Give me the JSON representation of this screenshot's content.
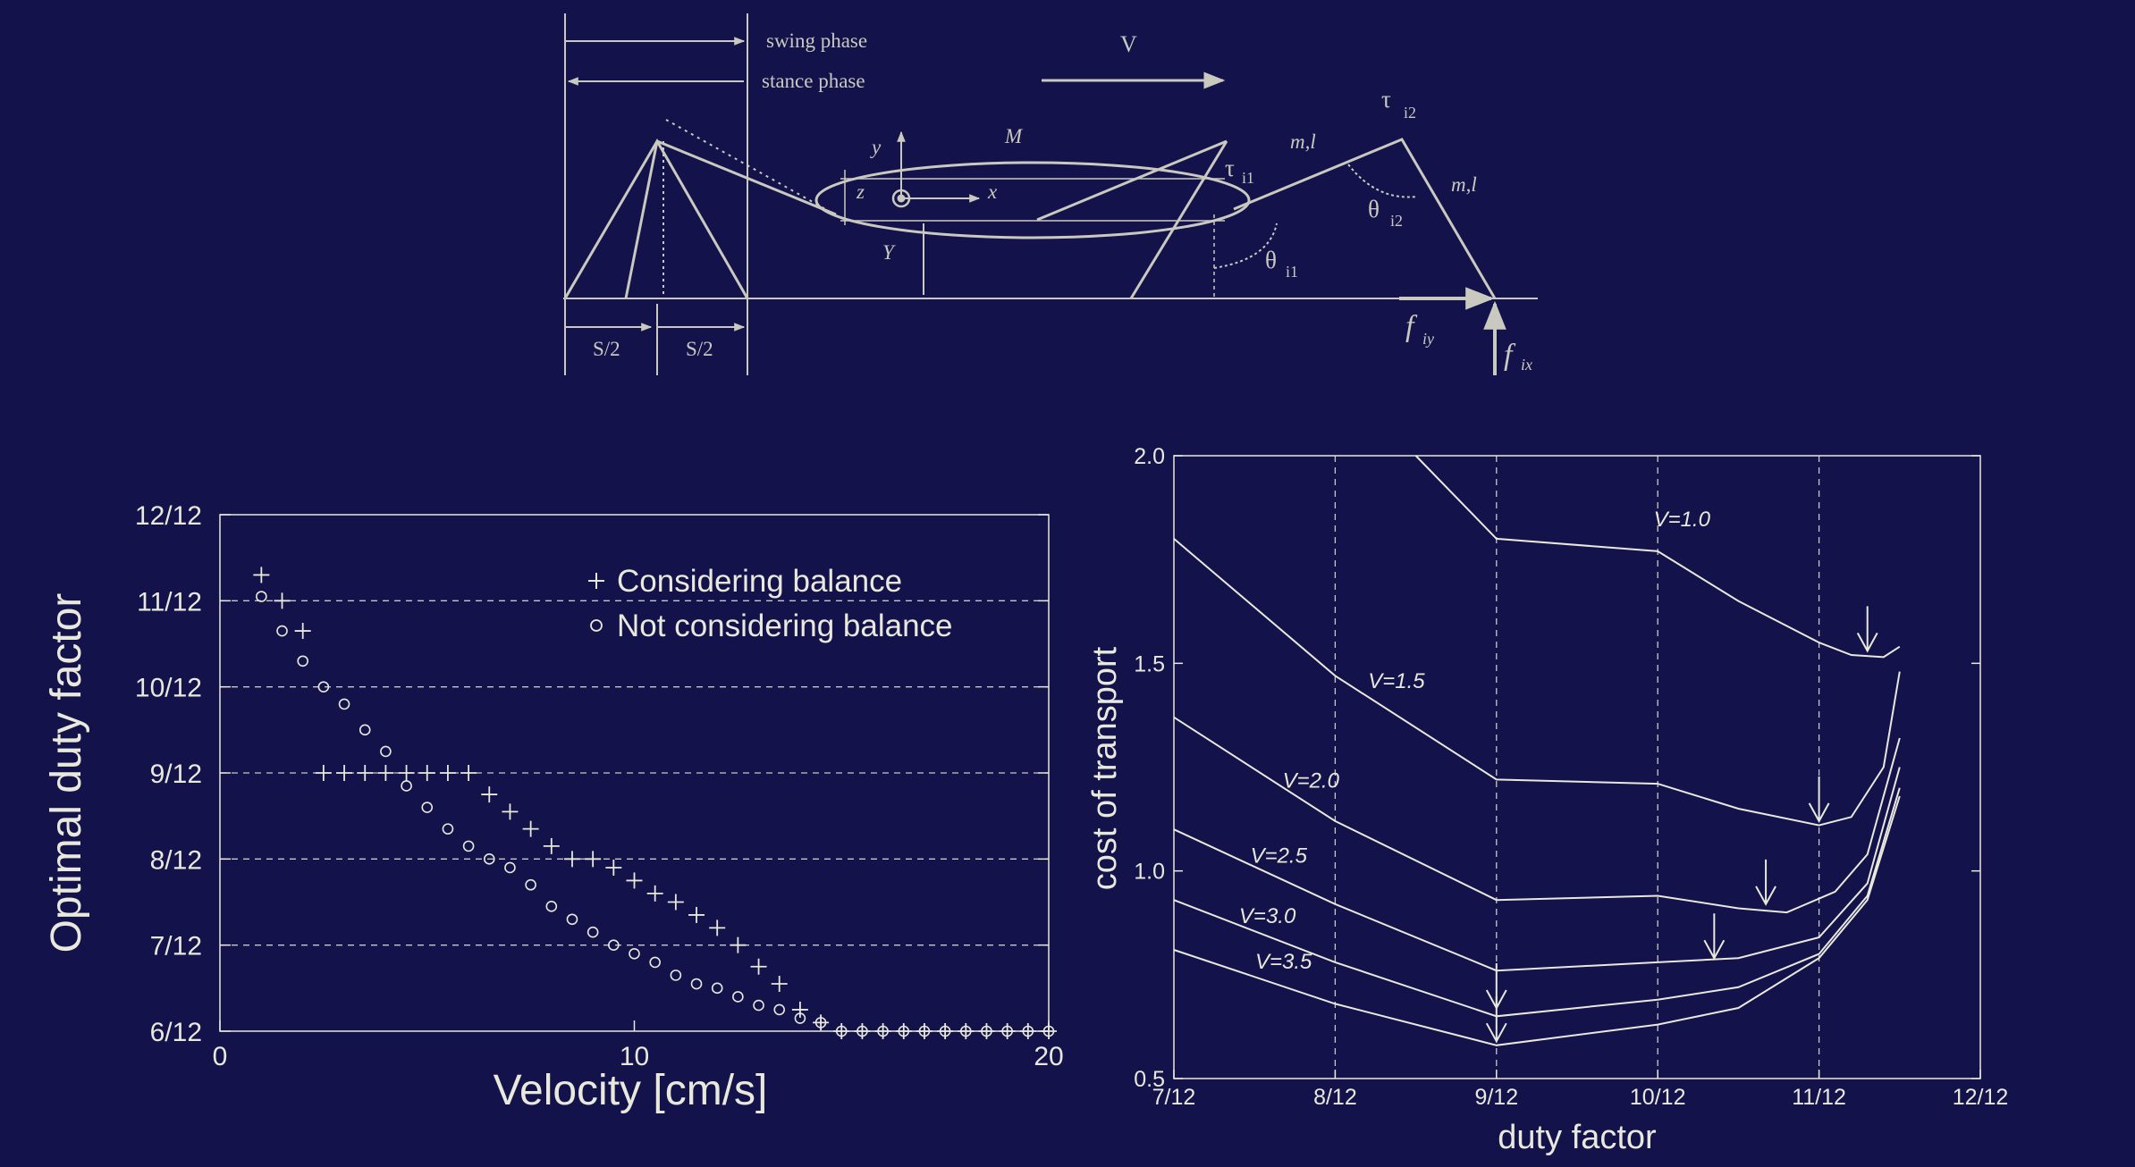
{
  "colors": {
    "background": "#13124a",
    "ink": "#e8e8dc",
    "diagram": "#c9c9c0"
  },
  "diagram": {
    "swing_phase": "swing phase",
    "stance_phase": "stance phase",
    "velocity": "V",
    "body_mass": "M",
    "y_axis": "y",
    "x_axis": "x",
    "z_axis": "z",
    "body_height": "Y",
    "leg1_params": "m,l",
    "leg2_params": "m,l",
    "tau_i2": "τ",
    "tau_i2_sub": "i2",
    "tau_i1": "τ",
    "tau_i1_sub": "i1",
    "theta_i2": "θ",
    "theta_i2_sub": "i2",
    "theta_i1": "θ",
    "theta_i1_sub": "i1",
    "half_stride_left": "S/2",
    "half_stride_right": "S/2",
    "f_iy": "f",
    "f_iy_sub": "iy",
    "f_ix": "f",
    "f_ix_sub": "ix"
  },
  "chart_data": [
    {
      "type": "scatter",
      "xlabel": "Velocity [cm/s]",
      "ylabel": "Optimal duty factor",
      "xlim": [
        0,
        20
      ],
      "ylim": [
        6,
        12
      ],
      "x_ticks": [
        0,
        10,
        20
      ],
      "y_ticks": [
        "6/12",
        "7/12",
        "8/12",
        "9/12",
        "10/12",
        "11/12",
        "12/12"
      ],
      "y_tick_values": [
        6,
        7,
        8,
        9,
        10,
        11,
        12
      ],
      "grid": "horizontal dashed",
      "legend_position": "top-right",
      "series": [
        {
          "name": "Considering balance",
          "marker": "plus",
          "points": [
            [
              1.0,
              11.3
            ],
            [
              1.5,
              11.0
            ],
            [
              2.0,
              10.65
            ],
            [
              2.5,
              9.0
            ],
            [
              3.0,
              9.0
            ],
            [
              3.5,
              9.0
            ],
            [
              4.0,
              9.0
            ],
            [
              4.5,
              9.0
            ],
            [
              5.0,
              9.0
            ],
            [
              5.5,
              9.0
            ],
            [
              6.0,
              9.0
            ],
            [
              6.5,
              8.75
            ],
            [
              7.0,
              8.55
            ],
            [
              7.5,
              8.35
            ],
            [
              8.0,
              8.15
            ],
            [
              8.5,
              8.0
            ],
            [
              9.0,
              8.0
            ],
            [
              9.5,
              7.9
            ],
            [
              10.0,
              7.75
            ],
            [
              10.5,
              7.6
            ],
            [
              11.0,
              7.5
            ],
            [
              11.5,
              7.35
            ],
            [
              12.0,
              7.2
            ],
            [
              12.5,
              7.0
            ],
            [
              13.0,
              6.75
            ],
            [
              13.5,
              6.55
            ],
            [
              14.0,
              6.25
            ],
            [
              14.5,
              6.1
            ],
            [
              15.0,
              6.0
            ],
            [
              15.5,
              6.0
            ],
            [
              16.0,
              6.0
            ],
            [
              16.5,
              6.0
            ],
            [
              17.0,
              6.0
            ],
            [
              17.5,
              6.0
            ],
            [
              18.0,
              6.0
            ],
            [
              18.5,
              6.0
            ],
            [
              19.0,
              6.0
            ],
            [
              19.5,
              6.0
            ],
            [
              20.0,
              6.0
            ]
          ]
        },
        {
          "name": "Not considering balance",
          "marker": "circle",
          "points": [
            [
              1.0,
              11.05
            ],
            [
              1.5,
              10.65
            ],
            [
              2.0,
              10.3
            ],
            [
              2.5,
              10.0
            ],
            [
              3.0,
              9.8
            ],
            [
              3.5,
              9.5
            ],
            [
              4.0,
              9.25
            ],
            [
              4.5,
              8.85
            ],
            [
              5.0,
              8.6
            ],
            [
              5.5,
              8.35
            ],
            [
              6.0,
              8.15
            ],
            [
              6.5,
              8.0
            ],
            [
              7.0,
              7.9
            ],
            [
              7.5,
              7.7
            ],
            [
              8.0,
              7.45
            ],
            [
              8.5,
              7.3
            ],
            [
              9.0,
              7.15
            ],
            [
              9.5,
              7.0
            ],
            [
              10.0,
              6.9
            ],
            [
              10.5,
              6.8
            ],
            [
              11.0,
              6.65
            ],
            [
              11.5,
              6.55
            ],
            [
              12.0,
              6.5
            ],
            [
              12.5,
              6.4
            ],
            [
              13.0,
              6.3
            ],
            [
              13.5,
              6.25
            ],
            [
              14.0,
              6.15
            ],
            [
              14.5,
              6.1
            ],
            [
              15.0,
              6.0
            ],
            [
              15.5,
              6.0
            ],
            [
              16.0,
              6.0
            ],
            [
              16.5,
              6.0
            ],
            [
              17.0,
              6.0
            ],
            [
              17.5,
              6.0
            ],
            [
              18.0,
              6.0
            ],
            [
              18.5,
              6.0
            ],
            [
              19.0,
              6.0
            ],
            [
              19.5,
              6.0
            ],
            [
              20.0,
              6.0
            ]
          ]
        }
      ]
    },
    {
      "type": "line",
      "xlabel": "duty factor",
      "ylabel": "cost of transport",
      "xlim": [
        7,
        12
      ],
      "ylim": [
        0.5,
        2.0
      ],
      "x_ticks": [
        "7/12",
        "8/12",
        "9/12",
        "10/12",
        "11/12",
        "12/12"
      ],
      "x_tick_values": [
        7,
        8,
        9,
        10,
        11,
        12
      ],
      "y_ticks": [
        "0.5",
        "1.0",
        "1.5",
        "2.0"
      ],
      "y_tick_values": [
        0.5,
        1.0,
        1.5,
        2.0
      ],
      "grid": "vertical dashed",
      "series": [
        {
          "name": "V=1.0",
          "label_at": [
            10.15,
            1.83
          ],
          "minimum_arrow": [
            11.3,
            1.53
          ],
          "points": [
            [
              8.5,
              2.0
            ],
            [
              9.0,
              1.8
            ],
            [
              10.0,
              1.77
            ],
            [
              10.5,
              1.65
            ],
            [
              11.0,
              1.55
            ],
            [
              11.2,
              1.52
            ],
            [
              11.4,
              1.515
            ],
            [
              11.5,
              1.54
            ]
          ]
        },
        {
          "name": "V=1.5",
          "label_at": [
            8.38,
            1.44
          ],
          "minimum_arrow": [
            11.0,
            1.12
          ],
          "points": [
            [
              7.0,
              1.8
            ],
            [
              8.0,
              1.47
            ],
            [
              9.0,
              1.22
            ],
            [
              10.0,
              1.21
            ],
            [
              10.5,
              1.15
            ],
            [
              11.0,
              1.11
            ],
            [
              11.2,
              1.13
            ],
            [
              11.4,
              1.25
            ],
            [
              11.5,
              1.48
            ]
          ]
        },
        {
          "name": "V=2.0",
          "label_at": [
            7.85,
            1.2
          ],
          "minimum_arrow": [
            10.67,
            0.92
          ],
          "points": [
            [
              7.0,
              1.37
            ],
            [
              8.0,
              1.12
            ],
            [
              9.0,
              0.93
            ],
            [
              10.0,
              0.94
            ],
            [
              10.5,
              0.91
            ],
            [
              10.8,
              0.9
            ],
            [
              11.1,
              0.95
            ],
            [
              11.3,
              1.04
            ],
            [
              11.5,
              1.32
            ]
          ]
        },
        {
          "name": "V=2.5",
          "label_at": [
            7.65,
            1.02
          ],
          "minimum_arrow": [
            10.35,
            0.79
          ],
          "points": [
            [
              7.0,
              1.1
            ],
            [
              8.0,
              0.92
            ],
            [
              9.0,
              0.76
            ],
            [
              10.0,
              0.78
            ],
            [
              10.5,
              0.79
            ],
            [
              11.0,
              0.84
            ],
            [
              11.3,
              0.97
            ],
            [
              11.5,
              1.25
            ]
          ]
        },
        {
          "name": "V=3.0",
          "label_at": [
            7.58,
            0.875
          ],
          "minimum_arrow": [
            9.0,
            0.67
          ],
          "points": [
            [
              7.0,
              0.93
            ],
            [
              8.0,
              0.78
            ],
            [
              9.0,
              0.65
            ],
            [
              10.0,
              0.69
            ],
            [
              10.5,
              0.72
            ],
            [
              11.0,
              0.8
            ],
            [
              11.3,
              0.94
            ],
            [
              11.5,
              1.2
            ]
          ]
        },
        {
          "name": "V=3.5",
          "label_at": [
            7.68,
            0.765
          ],
          "minimum_arrow": [
            9.0,
            0.59
          ],
          "points": [
            [
              7.0,
              0.81
            ],
            [
              8.0,
              0.68
            ],
            [
              9.0,
              0.58
            ],
            [
              10.0,
              0.63
            ],
            [
              10.5,
              0.67
            ],
            [
              11.0,
              0.79
            ],
            [
              11.3,
              0.93
            ],
            [
              11.5,
              1.18
            ]
          ]
        }
      ]
    }
  ]
}
